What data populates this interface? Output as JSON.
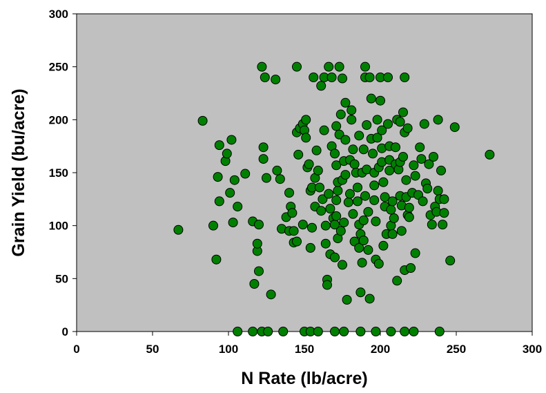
{
  "chart_data": {
    "type": "scatter",
    "xlabel": "N Rate (lb/acre)",
    "ylabel": "Grain Yield (bu/acre)",
    "xlim": [
      0,
      300
    ],
    "ylim": [
      0,
      300
    ],
    "xticks": [
      "0",
      "50",
      "100",
      "150",
      "200",
      "250",
      "300"
    ],
    "yticks": [
      "0",
      "50",
      "100",
      "150",
      "200",
      "250",
      "300"
    ],
    "grid": false,
    "legend": "none",
    "colors": {
      "plot_background": "#c0c0c0",
      "marker_fill": "#008000",
      "marker_stroke": "#000000"
    },
    "points": [
      [
        67,
        96
      ],
      [
        83,
        199
      ],
      [
        90,
        100
      ],
      [
        92,
        68
      ],
      [
        94,
        176
      ],
      [
        93,
        146
      ],
      [
        94,
        123
      ],
      [
        98,
        161
      ],
      [
        99,
        168
      ],
      [
        101,
        131
      ],
      [
        102,
        181
      ],
      [
        103,
        103
      ],
      [
        104,
        143
      ],
      [
        106,
        118
      ],
      [
        111,
        149
      ],
      [
        116,
        104
      ],
      [
        117,
        45
      ],
      [
        119,
        76
      ],
      [
        119,
        83
      ],
      [
        120,
        101
      ],
      [
        120,
        57
      ],
      [
        122,
        250
      ],
      [
        123,
        174
      ],
      [
        123,
        163
      ],
      [
        124,
        240
      ],
      [
        125,
        145
      ],
      [
        128,
        35
      ],
      [
        131,
        238
      ],
      [
        132,
        152
      ],
      [
        134,
        144
      ],
      [
        135,
        97
      ],
      [
        138,
        108
      ],
      [
        140,
        131
      ],
      [
        140,
        95
      ],
      [
        141,
        118
      ],
      [
        142,
        112
      ],
      [
        143,
        95
      ],
      [
        143,
        84
      ],
      [
        145,
        85
      ],
      [
        145,
        250
      ],
      [
        145,
        188
      ],
      [
        146,
        167
      ],
      [
        147,
        192
      ],
      [
        149,
        196
      ],
      [
        149,
        101
      ],
      [
        150,
        190
      ],
      [
        151,
        183
      ],
      [
        151,
        200
      ],
      [
        152,
        155
      ],
      [
        153,
        158
      ],
      [
        154,
        133
      ],
      [
        154,
        79
      ],
      [
        155,
        98
      ],
      [
        155,
        136
      ],
      [
        157,
        145
      ],
      [
        156,
        240
      ],
      [
        157,
        118
      ],
      [
        158,
        171
      ],
      [
        159,
        152
      ],
      [
        160,
        136
      ],
      [
        161,
        114
      ],
      [
        161,
        232
      ],
      [
        162,
        125
      ],
      [
        163,
        190
      ],
      [
        163,
        240
      ],
      [
        164,
        83
      ],
      [
        164,
        100
      ],
      [
        165,
        49
      ],
      [
        165,
        44
      ],
      [
        166,
        250
      ],
      [
        166,
        130
      ],
      [
        167,
        116
      ],
      [
        167,
        73
      ],
      [
        168,
        175
      ],
      [
        168,
        240
      ],
      [
        169,
        107
      ],
      [
        170,
        168
      ],
      [
        170,
        101
      ],
      [
        170,
        70
      ],
      [
        171,
        194
      ],
      [
        171,
        124
      ],
      [
        171,
        157
      ],
      [
        171,
        109
      ],
      [
        172,
        133
      ],
      [
        172,
        141
      ],
      [
        172,
        88
      ],
      [
        173,
        186
      ],
      [
        173,
        250
      ],
      [
        174,
        205
      ],
      [
        174,
        95
      ],
      [
        175,
        143
      ],
      [
        175,
        239
      ],
      [
        175,
        63
      ],
      [
        176,
        161
      ],
      [
        176,
        103
      ],
      [
        177,
        216
      ],
      [
        177,
        181
      ],
      [
        177,
        148
      ],
      [
        178,
        30
      ],
      [
        179,
        122
      ],
      [
        180,
        162
      ],
      [
        180,
        130
      ],
      [
        181,
        200
      ],
      [
        181,
        209
      ],
      [
        182,
        172
      ],
      [
        182,
        111
      ],
      [
        183,
        158
      ],
      [
        183,
        85
      ],
      [
        184,
        150
      ],
      [
        185,
        123
      ],
      [
        185,
        136
      ],
      [
        186,
        185
      ],
      [
        186,
        101
      ],
      [
        186,
        79
      ],
      [
        187,
        92
      ],
      [
        187,
        37
      ],
      [
        188,
        150
      ],
      [
        188,
        65
      ],
      [
        189,
        172
      ],
      [
        189,
        86
      ],
      [
        189,
        105
      ],
      [
        190,
        250
      ],
      [
        190,
        240
      ],
      [
        190,
        128
      ],
      [
        191,
        195
      ],
      [
        191,
        153
      ],
      [
        192,
        113
      ],
      [
        192,
        77
      ],
      [
        193,
        240
      ],
      [
        193,
        31
      ],
      [
        194,
        220
      ],
      [
        194,
        182
      ],
      [
        195,
        168
      ],
      [
        196,
        150
      ],
      [
        196,
        124
      ],
      [
        196,
        138
      ],
      [
        197,
        104
      ],
      [
        197,
        68
      ],
      [
        198,
        200
      ],
      [
        198,
        183
      ],
      [
        199,
        155
      ],
      [
        199,
        64
      ],
      [
        200,
        240
      ],
      [
        200,
        218
      ],
      [
        201,
        190
      ],
      [
        201,
        173
      ],
      [
        201,
        160
      ],
      [
        202,
        141
      ],
      [
        202,
        81
      ],
      [
        203,
        127
      ],
      [
        203,
        118
      ],
      [
        204,
        92
      ],
      [
        205,
        240
      ],
      [
        205,
        196
      ],
      [
        206,
        175
      ],
      [
        206,
        162
      ],
      [
        206,
        152
      ],
      [
        207,
        115
      ],
      [
        207,
        100
      ],
      [
        208,
        92
      ],
      [
        208,
        123
      ],
      [
        209,
        107
      ],
      [
        210,
        174
      ],
      [
        210,
        158
      ],
      [
        211,
        200
      ],
      [
        211,
        48
      ],
      [
        212,
        153
      ],
      [
        213,
        198
      ],
      [
        213,
        160
      ],
      [
        213,
        128
      ],
      [
        214,
        119
      ],
      [
        214,
        95
      ],
      [
        215,
        207
      ],
      [
        215,
        165
      ],
      [
        216,
        240
      ],
      [
        216,
        188
      ],
      [
        216,
        58
      ],
      [
        217,
        143
      ],
      [
        217,
        127
      ],
      [
        218,
        192
      ],
      [
        218,
        110
      ],
      [
        219,
        117
      ],
      [
        219,
        108
      ],
      [
        220,
        60
      ],
      [
        221,
        131
      ],
      [
        222,
        157
      ],
      [
        223,
        147
      ],
      [
        223,
        74
      ],
      [
        225,
        129
      ],
      [
        226,
        174
      ],
      [
        227,
        163
      ],
      [
        228,
        123
      ],
      [
        229,
        196
      ],
      [
        230,
        140
      ],
      [
        231,
        135
      ],
      [
        232,
        158
      ],
      [
        233,
        110
      ],
      [
        234,
        101
      ],
      [
        235,
        165
      ],
      [
        236,
        118
      ],
      [
        237,
        113
      ],
      [
        238,
        200
      ],
      [
        238,
        133
      ],
      [
        239,
        125
      ],
      [
        240,
        152
      ],
      [
        241,
        101
      ],
      [
        242,
        125
      ],
      [
        242,
        112
      ],
      [
        246,
        67
      ],
      [
        249,
        193
      ],
      [
        272,
        167
      ],
      [
        106,
        0
      ],
      [
        116,
        0
      ],
      [
        122,
        0
      ],
      [
        126,
        0
      ],
      [
        136,
        0
      ],
      [
        150,
        0
      ],
      [
        154,
        0
      ],
      [
        159,
        0
      ],
      [
        170,
        0
      ],
      [
        176,
        0
      ],
      [
        187,
        0
      ],
      [
        197,
        0
      ],
      [
        207,
        0
      ],
      [
        216,
        0
      ],
      [
        222,
        0
      ],
      [
        239,
        0
      ]
    ]
  }
}
